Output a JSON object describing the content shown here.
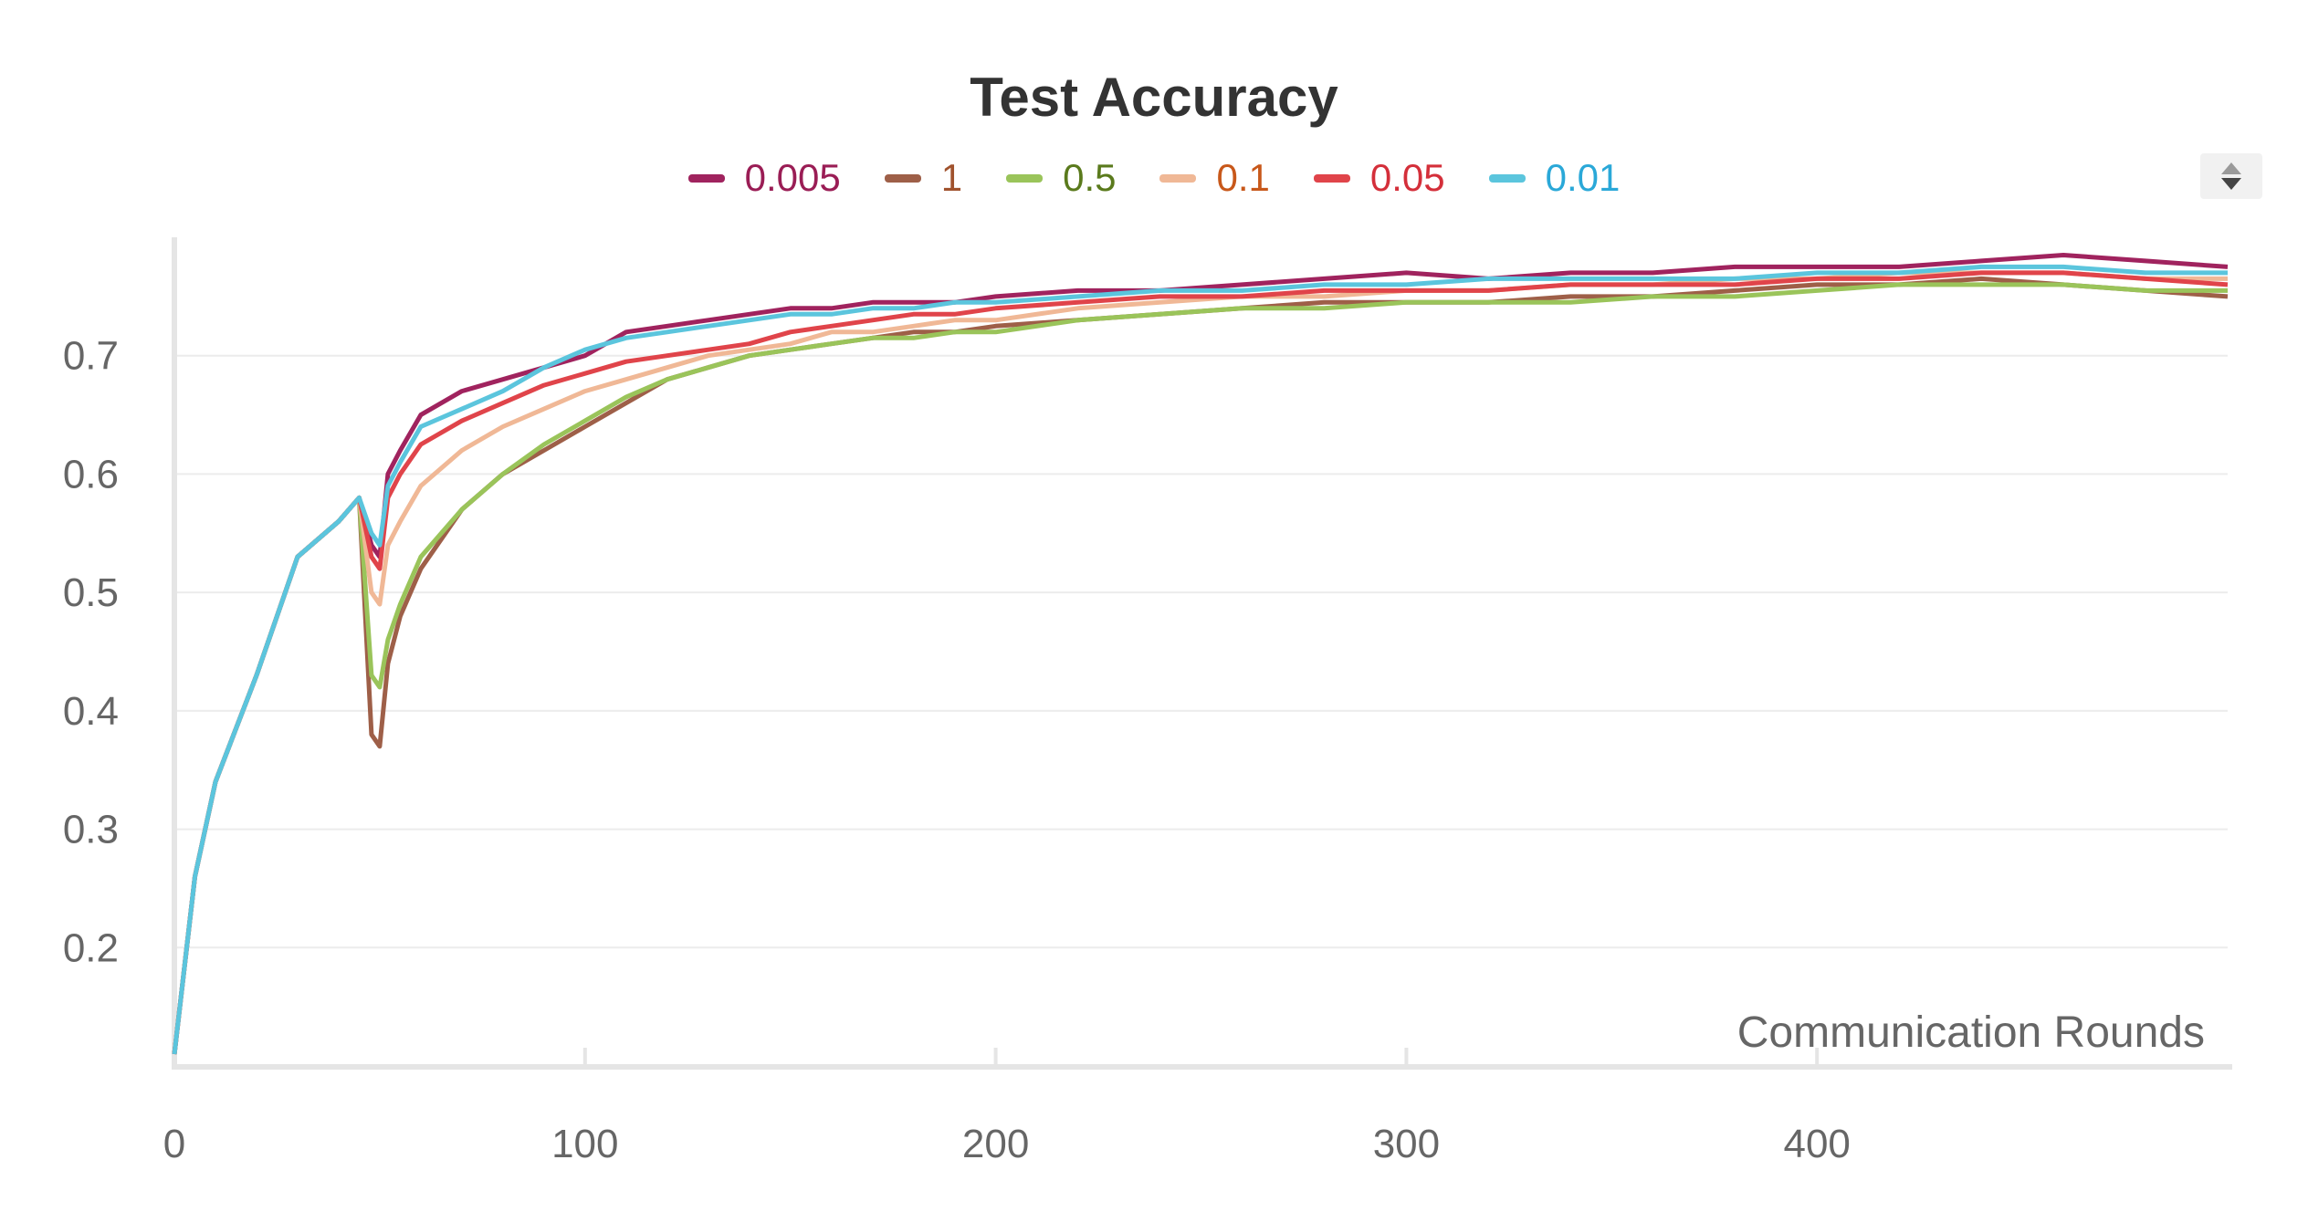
{
  "chart_data": {
    "type": "line",
    "title": "Test Accuracy",
    "xlabel": "Communication Rounds",
    "ylabel": "",
    "xlim": [
      0,
      500
    ],
    "ylim": [
      0.1,
      0.8
    ],
    "x_ticks": [
      0,
      100,
      200,
      300,
      400
    ],
    "x_tick_labels": [
      "0",
      "100",
      "200",
      "300",
      "400"
    ],
    "y_ticks": [
      0.2,
      0.3,
      0.4,
      0.5,
      0.6,
      0.7
    ],
    "y_tick_labels": [
      "0.2",
      "0.3",
      "0.4",
      "0.5",
      "0.6",
      "0.7"
    ],
    "grid": "horizontal",
    "legend_position": "top",
    "series": [
      {
        "name": "0.005",
        "color": "#a0235e",
        "label_color": "#9a1d55",
        "x": [
          0,
          5,
          10,
          20,
          30,
          40,
          45,
          48,
          50,
          52,
          55,
          60,
          70,
          80,
          90,
          100,
          110,
          120,
          130,
          140,
          150,
          160,
          170,
          180,
          190,
          200,
          220,
          240,
          260,
          280,
          300,
          320,
          340,
          360,
          380,
          400,
          420,
          440,
          460,
          480,
          500
        ],
        "values": [
          0.11,
          0.26,
          0.34,
          0.43,
          0.53,
          0.56,
          0.58,
          0.54,
          0.53,
          0.6,
          0.62,
          0.65,
          0.67,
          0.68,
          0.69,
          0.7,
          0.72,
          0.725,
          0.73,
          0.735,
          0.74,
          0.74,
          0.745,
          0.745,
          0.745,
          0.75,
          0.755,
          0.755,
          0.76,
          0.765,
          0.77,
          0.765,
          0.77,
          0.77,
          0.775,
          0.775,
          0.775,
          0.78,
          0.785,
          0.78,
          0.775
        ]
      },
      {
        "name": "1",
        "color": "#9e5f48",
        "label_color": "#a0522d",
        "x": [
          0,
          5,
          10,
          20,
          30,
          40,
          45,
          48,
          50,
          52,
          55,
          60,
          70,
          80,
          90,
          100,
          110,
          120,
          130,
          140,
          150,
          160,
          170,
          180,
          190,
          200,
          220,
          240,
          260,
          280,
          300,
          320,
          340,
          360,
          380,
          400,
          420,
          440,
          460,
          480,
          500
        ],
        "values": [
          0.11,
          0.26,
          0.34,
          0.43,
          0.53,
          0.56,
          0.58,
          0.38,
          0.37,
          0.44,
          0.48,
          0.52,
          0.57,
          0.6,
          0.62,
          0.64,
          0.66,
          0.68,
          0.69,
          0.7,
          0.705,
          0.71,
          0.715,
          0.72,
          0.72,
          0.725,
          0.73,
          0.735,
          0.74,
          0.745,
          0.745,
          0.745,
          0.75,
          0.75,
          0.755,
          0.76,
          0.76,
          0.765,
          0.76,
          0.755,
          0.75
        ]
      },
      {
        "name": "0.5",
        "color": "#9ac45a",
        "label_color": "#5a7a1c",
        "x": [
          0,
          5,
          10,
          20,
          30,
          40,
          45,
          48,
          50,
          52,
          55,
          60,
          70,
          80,
          90,
          100,
          110,
          120,
          130,
          140,
          150,
          160,
          170,
          180,
          190,
          200,
          220,
          240,
          260,
          280,
          300,
          320,
          340,
          360,
          380,
          400,
          420,
          440,
          460,
          480,
          500
        ],
        "values": [
          0.11,
          0.26,
          0.34,
          0.43,
          0.53,
          0.56,
          0.58,
          0.43,
          0.42,
          0.46,
          0.49,
          0.53,
          0.57,
          0.6,
          0.625,
          0.645,
          0.665,
          0.68,
          0.69,
          0.7,
          0.705,
          0.71,
          0.715,
          0.715,
          0.72,
          0.72,
          0.73,
          0.735,
          0.74,
          0.74,
          0.745,
          0.745,
          0.745,
          0.75,
          0.75,
          0.755,
          0.76,
          0.76,
          0.76,
          0.755,
          0.755
        ]
      },
      {
        "name": "0.1",
        "color": "#f0b896",
        "label_color": "#c8581a",
        "x": [
          0,
          5,
          10,
          20,
          30,
          40,
          45,
          48,
          50,
          52,
          55,
          60,
          70,
          80,
          90,
          100,
          110,
          120,
          130,
          140,
          150,
          160,
          170,
          180,
          190,
          200,
          220,
          240,
          260,
          280,
          300,
          320,
          340,
          360,
          380,
          400,
          420,
          440,
          460,
          480,
          500
        ],
        "values": [
          0.11,
          0.26,
          0.34,
          0.43,
          0.53,
          0.56,
          0.58,
          0.5,
          0.49,
          0.54,
          0.56,
          0.59,
          0.62,
          0.64,
          0.655,
          0.67,
          0.68,
          0.69,
          0.7,
          0.705,
          0.71,
          0.72,
          0.72,
          0.725,
          0.73,
          0.73,
          0.74,
          0.745,
          0.75,
          0.75,
          0.755,
          0.755,
          0.76,
          0.76,
          0.765,
          0.765,
          0.77,
          0.77,
          0.77,
          0.765,
          0.765
        ]
      },
      {
        "name": "0.05",
        "color": "#e0444a",
        "label_color": "#d42f3a",
        "x": [
          0,
          5,
          10,
          20,
          30,
          40,
          45,
          48,
          50,
          52,
          55,
          60,
          70,
          80,
          90,
          100,
          110,
          120,
          130,
          140,
          150,
          160,
          170,
          180,
          190,
          200,
          220,
          240,
          260,
          280,
          300,
          320,
          340,
          360,
          380,
          400,
          420,
          440,
          460,
          480,
          500
        ],
        "values": [
          0.11,
          0.26,
          0.34,
          0.43,
          0.53,
          0.56,
          0.58,
          0.53,
          0.52,
          0.58,
          0.6,
          0.625,
          0.645,
          0.66,
          0.675,
          0.685,
          0.695,
          0.7,
          0.705,
          0.71,
          0.72,
          0.725,
          0.73,
          0.735,
          0.735,
          0.74,
          0.745,
          0.75,
          0.75,
          0.755,
          0.755,
          0.755,
          0.76,
          0.76,
          0.76,
          0.765,
          0.765,
          0.77,
          0.77,
          0.765,
          0.76
        ]
      },
      {
        "name": "0.01",
        "color": "#5bc5dd",
        "label_color": "#2aa8d8",
        "x": [
          0,
          5,
          10,
          20,
          30,
          40,
          45,
          48,
          50,
          52,
          55,
          60,
          70,
          80,
          90,
          100,
          110,
          120,
          130,
          140,
          150,
          160,
          170,
          180,
          190,
          200,
          220,
          240,
          260,
          280,
          300,
          320,
          340,
          360,
          380,
          400,
          420,
          440,
          460,
          480,
          500
        ],
        "values": [
          0.11,
          0.26,
          0.34,
          0.43,
          0.53,
          0.56,
          0.58,
          0.55,
          0.54,
          0.59,
          0.61,
          0.64,
          0.655,
          0.67,
          0.69,
          0.705,
          0.715,
          0.72,
          0.725,
          0.73,
          0.735,
          0.735,
          0.74,
          0.74,
          0.745,
          0.745,
          0.75,
          0.755,
          0.755,
          0.76,
          0.76,
          0.765,
          0.765,
          0.765,
          0.765,
          0.77,
          0.77,
          0.775,
          0.775,
          0.77,
          0.77
        ]
      }
    ]
  }
}
